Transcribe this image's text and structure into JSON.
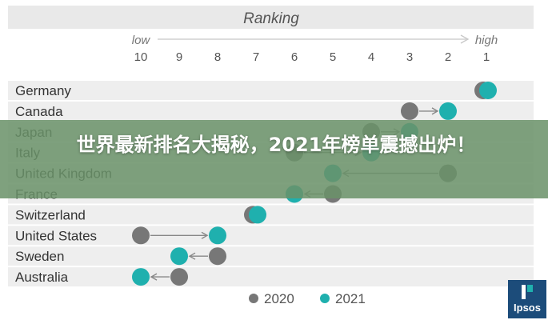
{
  "chart_data": {
    "type": "dumbbell",
    "title": "Ranking",
    "axis_low_label": "low",
    "axis_high_label": "high",
    "ticks": [
      10,
      9,
      8,
      7,
      6,
      5,
      4,
      3,
      2,
      1
    ],
    "series": [
      {
        "name": "2020",
        "color": "#777777"
      },
      {
        "name": "2021",
        "color": "#1fb0ae"
      }
    ],
    "rows": [
      {
        "country": "Germany",
        "rank_2020": 1,
        "rank_2021": 1
      },
      {
        "country": "Canada",
        "rank_2020": 3,
        "rank_2021": 2
      },
      {
        "country": "Japan",
        "rank_2020": 4,
        "rank_2021": 3
      },
      {
        "country": "Italy",
        "rank_2020": 6,
        "rank_2021": 4
      },
      {
        "country": "United Kingdom",
        "rank_2020": 2,
        "rank_2021": 5
      },
      {
        "country": "France",
        "rank_2020": 5,
        "rank_2021": 6
      },
      {
        "country": "Switzerland",
        "rank_2020": 7,
        "rank_2021": 7
      },
      {
        "country": "United States",
        "rank_2020": 10,
        "rank_2021": 8
      },
      {
        "country": "Sweden",
        "rank_2020": 8,
        "rank_2021": 9
      },
      {
        "country": "Australia",
        "rank_2020": 9,
        "rank_2021": 10
      }
    ]
  },
  "banner": {
    "text": "世界最新排名大揭秘，2021年榜单震撼出炉！"
  },
  "logo": {
    "text": "Ipsos"
  }
}
